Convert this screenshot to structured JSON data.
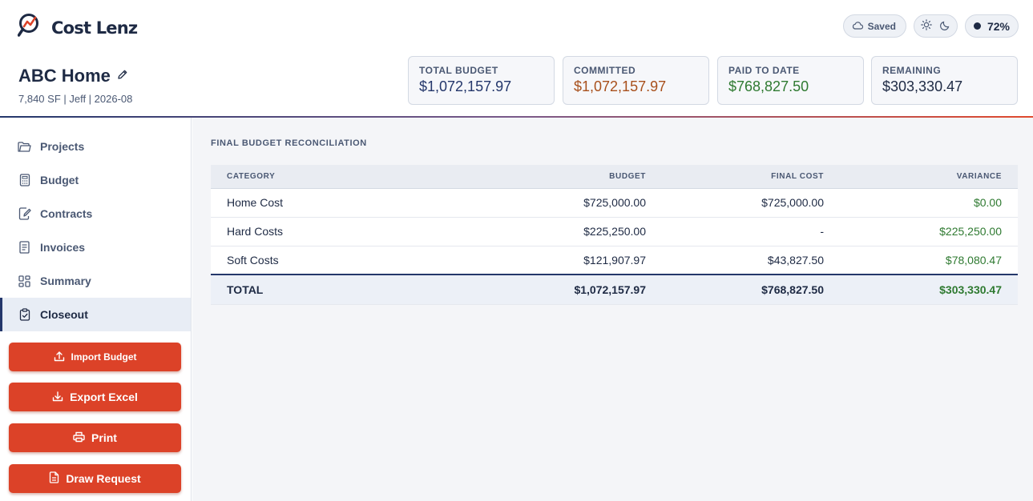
{
  "app": {
    "brand": "Cost Lenz"
  },
  "status": {
    "saved_label": "Saved",
    "progress_label": "72%"
  },
  "project": {
    "title": "ABC Home",
    "meta": "7,840 SF | Jeff | 2026-08"
  },
  "stats": [
    {
      "label": "TOTAL BUDGET",
      "value": "$1,072,157.97",
      "color": "#24376b"
    },
    {
      "label": "COMMITTED",
      "value": "$1,072,157.97",
      "color": "#a8501c"
    },
    {
      "label": "PAID TO DATE",
      "value": "$768,827.50",
      "color": "#2f7a31"
    },
    {
      "label": "REMAINING",
      "value": "$303,330.47",
      "color": "#1e2a44"
    }
  ],
  "sidebar": {
    "items": [
      {
        "label": "Projects",
        "icon": "folder-icon"
      },
      {
        "label": "Budget",
        "icon": "calculator-icon"
      },
      {
        "label": "Contracts",
        "icon": "contract-edit-icon"
      },
      {
        "label": "Invoices",
        "icon": "invoice-icon"
      },
      {
        "label": "Summary",
        "icon": "grid-icon"
      },
      {
        "label": "Closeout",
        "icon": "clipboard-check-icon",
        "active": true
      }
    ],
    "actions": [
      {
        "label": "Import Budget",
        "icon": "upload-icon"
      },
      {
        "label": "Export Excel",
        "icon": "download-icon"
      },
      {
        "label": "Print",
        "icon": "printer-icon"
      },
      {
        "label": "Draw Request",
        "icon": "document-icon"
      }
    ]
  },
  "main": {
    "section_title": "FINAL BUDGET RECONCILIATION",
    "table": {
      "headers": [
        "CATEGORY",
        "BUDGET",
        "FINAL COST",
        "VARIANCE"
      ],
      "rows": [
        [
          "Home Cost",
          "$725,000.00",
          "$725,000.00",
          "$0.00"
        ],
        [
          "Hard Costs",
          "$225,250.00",
          "-",
          "$225,250.00"
        ],
        [
          "Soft Costs",
          "$121,907.97",
          "$43,827.50",
          "$78,080.47"
        ]
      ],
      "total": [
        "TOTAL",
        "$1,072,157.97",
        "$768,827.50",
        "$303,330.47"
      ]
    }
  },
  "colors": {
    "accent": "#dc4228",
    "navy": "#24376b",
    "positive": "#2f7a31"
  }
}
